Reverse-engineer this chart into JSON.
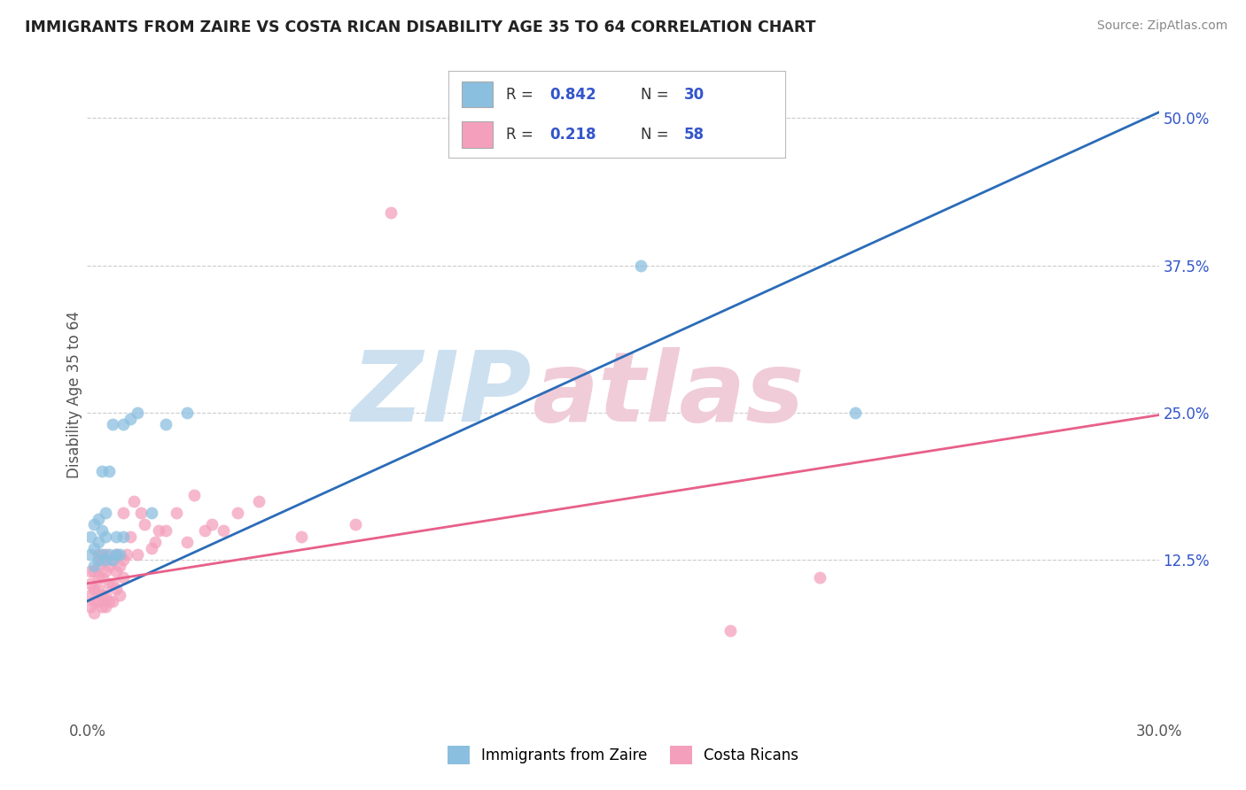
{
  "title": "IMMIGRANTS FROM ZAIRE VS COSTA RICAN DISABILITY AGE 35 TO 64 CORRELATION CHART",
  "source": "Source: ZipAtlas.com",
  "ylabel": "Disability Age 35 to 64",
  "xlim": [
    0.0,
    0.3
  ],
  "ylim": [
    -0.01,
    0.54
  ],
  "x_tick_labels": [
    "0.0%",
    "30.0%"
  ],
  "y_ticks_right": [
    0.125,
    0.25,
    0.375,
    0.5
  ],
  "y_tick_labels_right": [
    "12.5%",
    "25.0%",
    "37.5%",
    "50.0%"
  ],
  "blue_color": "#8bbfdf",
  "pink_color": "#f4a0bc",
  "blue_line_color": "#2b6cb8",
  "pink_line_color": "#e8608a",
  "legend_R_color": "#3355cc",
  "blue_line_x0": 0.0,
  "blue_line_y0": 0.09,
  "blue_line_x1": 0.3,
  "blue_line_y1": 0.505,
  "pink_line_x0": 0.0,
  "pink_line_y0": 0.105,
  "pink_line_x1": 0.3,
  "pink_line_y1": 0.248,
  "blue_scatter_x": [
    0.001,
    0.001,
    0.002,
    0.002,
    0.002,
    0.003,
    0.003,
    0.003,
    0.004,
    0.004,
    0.004,
    0.005,
    0.005,
    0.005,
    0.006,
    0.006,
    0.007,
    0.007,
    0.008,
    0.008,
    0.009,
    0.01,
    0.01,
    0.012,
    0.014,
    0.018,
    0.022,
    0.028,
    0.155,
    0.215
  ],
  "blue_scatter_y": [
    0.13,
    0.145,
    0.12,
    0.135,
    0.155,
    0.125,
    0.14,
    0.16,
    0.13,
    0.15,
    0.2,
    0.125,
    0.145,
    0.165,
    0.13,
    0.2,
    0.125,
    0.24,
    0.13,
    0.145,
    0.13,
    0.145,
    0.24,
    0.245,
    0.25,
    0.165,
    0.24,
    0.25,
    0.375,
    0.25
  ],
  "pink_scatter_x": [
    0.001,
    0.001,
    0.001,
    0.001,
    0.002,
    0.002,
    0.002,
    0.002,
    0.003,
    0.003,
    0.003,
    0.003,
    0.003,
    0.004,
    0.004,
    0.004,
    0.004,
    0.005,
    0.005,
    0.005,
    0.005,
    0.006,
    0.006,
    0.006,
    0.007,
    0.007,
    0.007,
    0.008,
    0.008,
    0.008,
    0.009,
    0.009,
    0.01,
    0.01,
    0.01,
    0.011,
    0.012,
    0.013,
    0.014,
    0.015,
    0.016,
    0.018,
    0.019,
    0.02,
    0.022,
    0.025,
    0.028,
    0.03,
    0.033,
    0.035,
    0.038,
    0.042,
    0.048,
    0.06,
    0.075,
    0.085,
    0.18,
    0.205
  ],
  "pink_scatter_y": [
    0.085,
    0.095,
    0.105,
    0.115,
    0.08,
    0.09,
    0.1,
    0.115,
    0.09,
    0.1,
    0.11,
    0.12,
    0.13,
    0.085,
    0.095,
    0.11,
    0.125,
    0.085,
    0.095,
    0.115,
    0.13,
    0.09,
    0.105,
    0.12,
    0.09,
    0.105,
    0.125,
    0.1,
    0.115,
    0.13,
    0.095,
    0.12,
    0.11,
    0.125,
    0.165,
    0.13,
    0.145,
    0.175,
    0.13,
    0.165,
    0.155,
    0.135,
    0.14,
    0.15,
    0.15,
    0.165,
    0.14,
    0.18,
    0.15,
    0.155,
    0.15,
    0.165,
    0.175,
    0.145,
    0.155,
    0.42,
    0.065,
    0.11
  ],
  "background_color": "#ffffff",
  "grid_color": "#cccccc",
  "watermark_zip_color": "#cce0f0",
  "watermark_atlas_color": "#f0ccd8"
}
